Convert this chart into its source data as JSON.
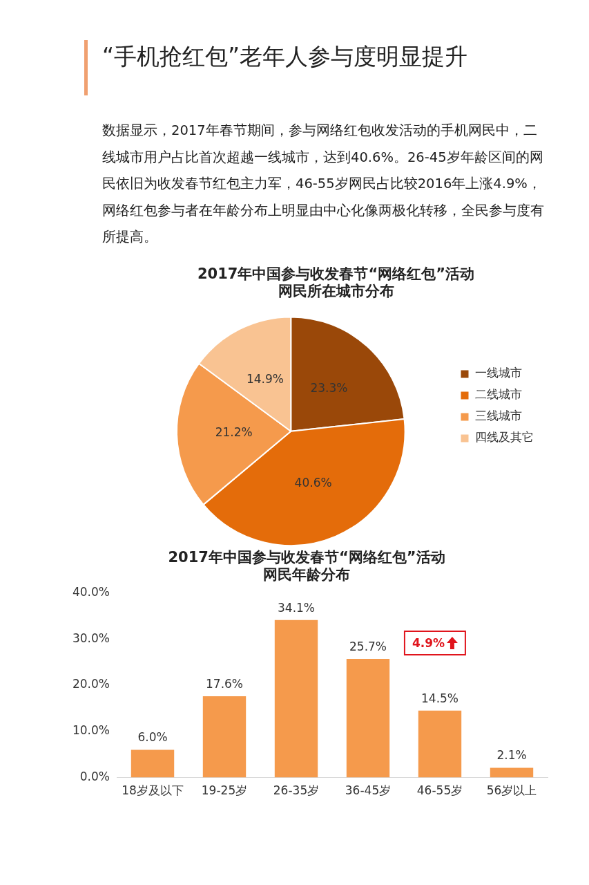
{
  "chart_data": [
    {
      "type": "other",
      "title": "“手机抢红包”老年人参与度明显提升",
      "annotations": [
        "数据显示，2017年春节期间，参与网络红包收发活动的手机网民中，二线城市用户占比首次超越一线城市，达到40.6%。26-45岁年龄区间的网民依旧为收发春节红包主力军，46-55岁网民占比较2016年上涨4.9%，网络红包参与者在年龄分布上明显由中心化像两极化转移，全民参与度有所提高。"
      ]
    },
    {
      "type": "pie",
      "title": "2017年中国参与收发春节“网络红包”活动",
      "subtitle": "网民所在城市分布",
      "categories": [
        "一线城市",
        "二线城市",
        "三线城市",
        "四线及其它"
      ],
      "values": [
        23.3,
        40.6,
        21.2,
        14.9
      ],
      "colors": [
        "#9a4809",
        "#e46c0a",
        "#f59a4c",
        "#f9c392"
      ],
      "value_labels": [
        "23.3%",
        "40.6%",
        "21.2%",
        "14.9%"
      ],
      "legend": "right"
    },
    {
      "type": "bar",
      "title": "2017年中国参与收发春节“网络红包”活动",
      "subtitle": "网民年龄分布",
      "categories": [
        "18岁及以下",
        "19-25岁",
        "26-35岁",
        "36-45岁",
        "46-55岁",
        "56岁以上"
      ],
      "values": [
        6.0,
        17.6,
        34.1,
        25.7,
        14.5,
        2.1
      ],
      "color": "#f59a4c",
      "value_labels": [
        "6.0%",
        "17.6%",
        "34.1%",
        "25.7%",
        "14.5%",
        "2.1%"
      ],
      "ylim": [
        0,
        40
      ],
      "yticks": [
        {
          "value": 0,
          "label": "0.0%"
        },
        {
          "value": 10,
          "label": "10.0%"
        },
        {
          "value": 20,
          "label": "20.0%"
        },
        {
          "value": 30,
          "label": "30.0%"
        },
        {
          "value": 40,
          "label": "40.0%"
        }
      ],
      "grid": false,
      "legend": false,
      "annotations": [
        "4.9%"
      ]
    }
  ]
}
